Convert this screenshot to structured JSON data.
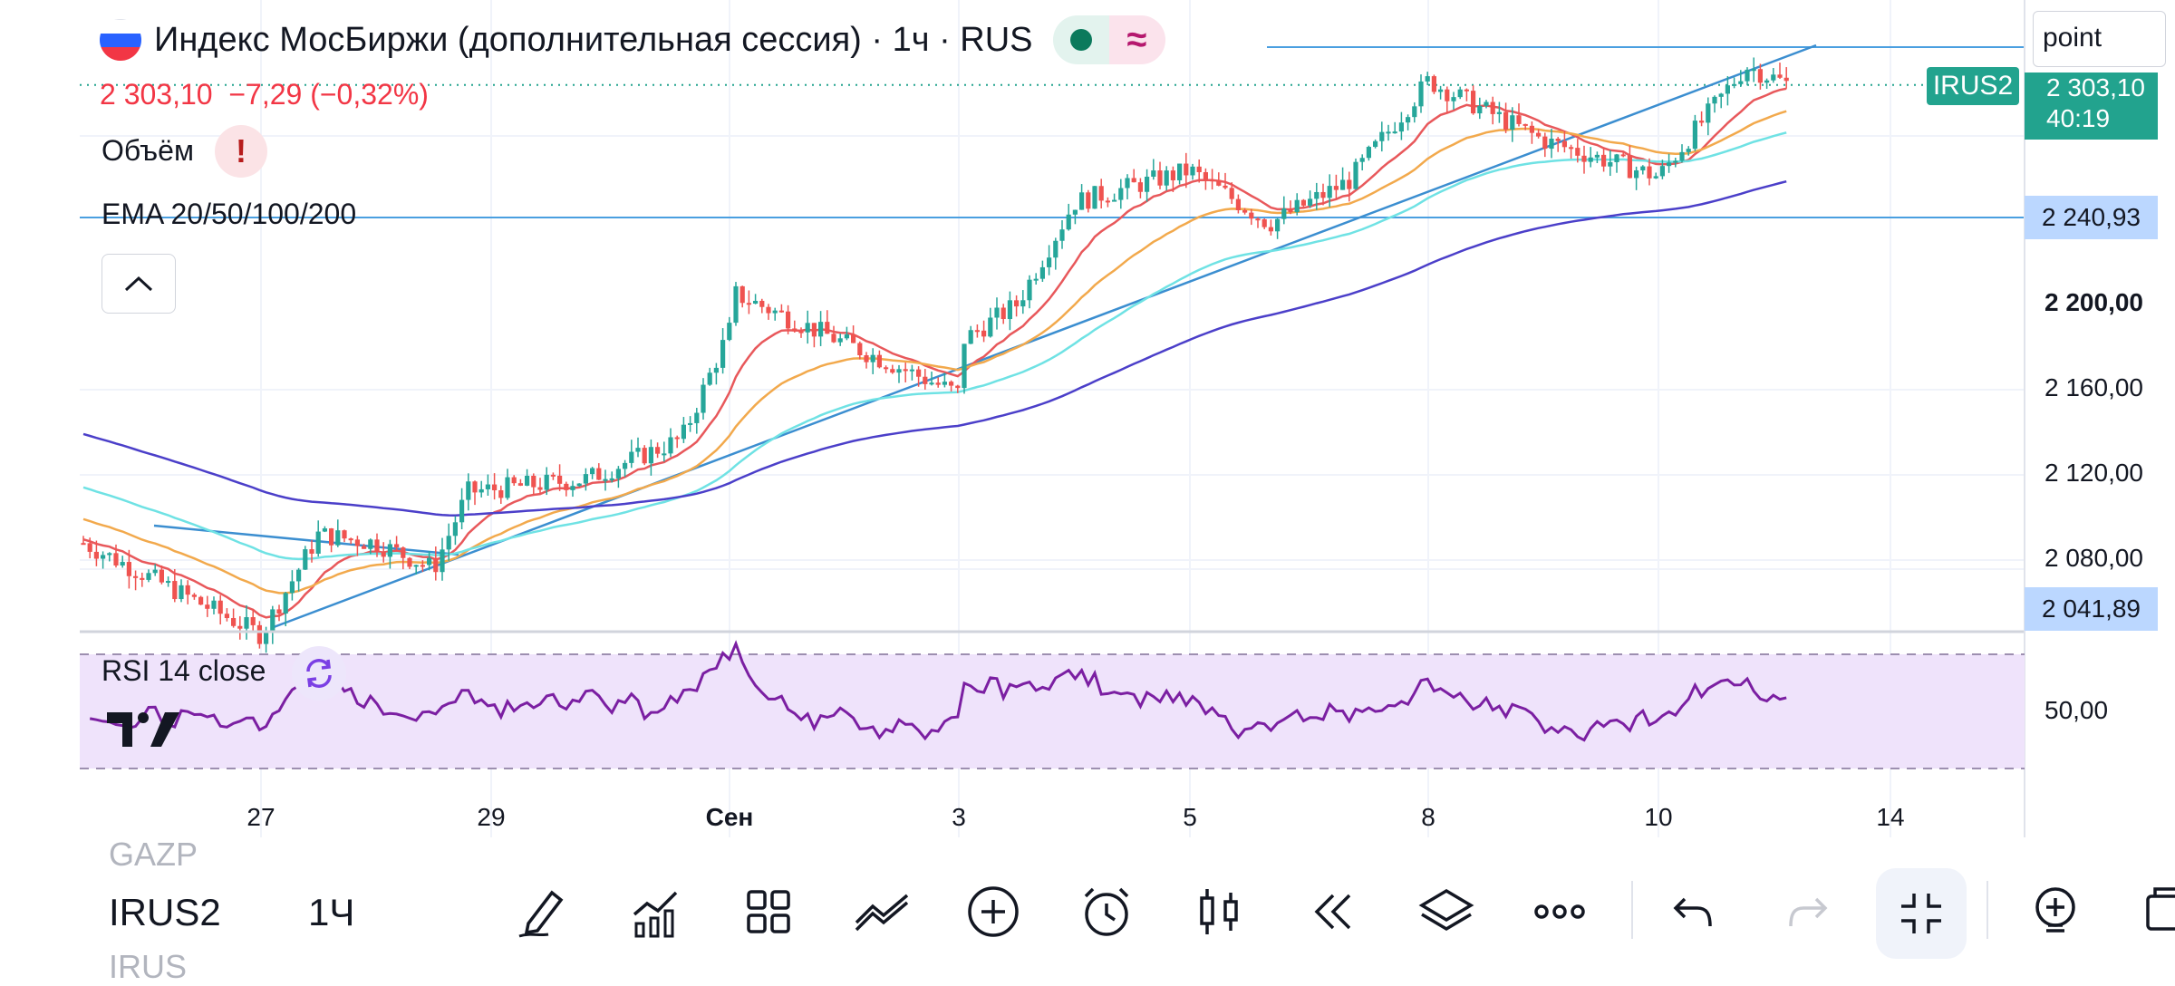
{
  "header": {
    "title": "Индекс МосБиржи (дополнительная сессия) · 1ч · RUS",
    "price_change": "2 303,10  −7,29 (−0,32%)",
    "volume_label": "Объём",
    "alert_glyph": "!",
    "ema_label": "EMA 20/50/100/200",
    "search_value": "point"
  },
  "price_scale": {
    "labels": [
      "2 200,00",
      "2 160,00",
      "2 120,00",
      "2 080,00"
    ],
    "symbol_tag": "IRUS2",
    "last_price": "2 303,10",
    "countdown": "40:19",
    "hline_upper": "2 240,93",
    "hline_lower": "2 041,89",
    "rsi_level": "50,00"
  },
  "rsi": {
    "label": "RSI 14 close"
  },
  "time_axis": {
    "labels": [
      "27",
      "29",
      "Сен",
      "3",
      "5",
      "8",
      "10",
      "14"
    ]
  },
  "toolbar": {
    "symbol_prev": "GAZP",
    "symbol_current": "IRUS2",
    "symbol_next": "IRUS",
    "interval": "1Ч",
    "buttons": [
      "draw-icon",
      "indicators-icon",
      "layout-icon",
      "trend-line-icon",
      "add-icon",
      "alert-icon",
      "candle-style-icon",
      "replay-icon",
      "layers-icon",
      "more-icon",
      "undo-icon",
      "redo-icon",
      "fullscreen-exit-icon",
      "idea-icon",
      "window-icon"
    ]
  },
  "colors": {
    "up": "#26a69a",
    "down": "#ef5350",
    "ema20": "#e8585b",
    "ema50": "#f2a94c",
    "ema100": "#6fe2e4",
    "ema200": "#4b3fc9",
    "rsi": "#7b1fa2",
    "rsi_band": "#efe3fb",
    "hline": "#4a9fe0"
  },
  "chart_data": {
    "type": "candlestick",
    "price_axis_ticks": [
      2080,
      2120,
      2160,
      2200
    ],
    "anchor_points": [
      {
        "t": "26",
        "p": 2088
      },
      {
        "t": "27",
        "p": 2045
      },
      {
        "t": "27.5",
        "p": 2092
      },
      {
        "t": "28",
        "p": 2088
      },
      {
        "t": "28.5",
        "p": 2076
      },
      {
        "t": "28.8",
        "p": 2112
      },
      {
        "t": "30",
        "p": 2118
      },
      {
        "t": "31",
        "p": 2137
      },
      {
        "t": "31.5",
        "p": 2188
      },
      {
        "t": "1",
        "p": 2172
      },
      {
        "t": "1.5",
        "p": 2206
      },
      {
        "t": "2",
        "p": 2158
      },
      {
        "t": "3",
        "p": 2182
      },
      {
        "t": "3.5",
        "p": 2200
      },
      {
        "t": "4",
        "p": 2248
      },
      {
        "t": "5",
        "p": 2263
      },
      {
        "t": "6",
        "p": 2238
      },
      {
        "t": "7",
        "p": 2258
      },
      {
        "t": "8",
        "p": 2305
      },
      {
        "t": "9",
        "p": 2277
      },
      {
        "t": "10",
        "p": 2260
      },
      {
        "t": "11",
        "p": 2312
      },
      {
        "t": "11.5",
        "p": 2303
      }
    ],
    "last_close": 2303.1,
    "change": -7.29,
    "change_pct": -0.32,
    "horizontal_lines": [
      2303.1,
      2240.93,
      2041.89
    ],
    "indicators": [
      "EMA 20",
      "EMA 50",
      "EMA 100",
      "EMA 200",
      "RSI 14 close"
    ],
    "rsi_axis": [
      50
    ]
  }
}
